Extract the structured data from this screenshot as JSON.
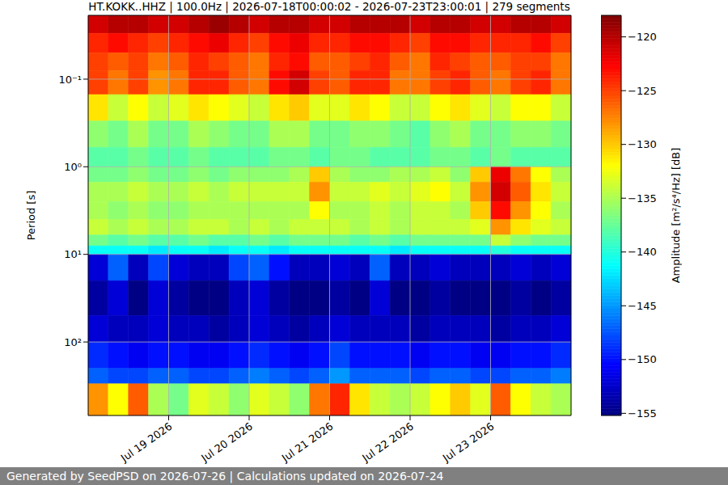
{
  "chart_data": {
    "type": "heatmap",
    "title": "HT.KOKK..HHZ | 100.0Hz | 2026-07-18T00:00:02 - 2026-07-23T23:00:01 | 279 segments",
    "footer": "Generated by SeedPSD on 2026-07-26 | Calculations updated on 2026-07-24",
    "y_label": "Period [s]",
    "log": "y",
    "grid": true,
    "xlim": [
      0,
      144
    ],
    "xticks": [
      {
        "value": 24,
        "label": "Jul 19 2026"
      },
      {
        "value": 48,
        "label": "Jul 20 2026"
      },
      {
        "value": 72,
        "label": "Jul 21 2026"
      },
      {
        "value": 96,
        "label": "Jul 22 2026"
      },
      {
        "value": 120,
        "label": "Jul 23 2026"
      }
    ],
    "ylim": [
      0.0187,
      690
    ],
    "yticks": [
      {
        "value": 0.1,
        "label": "10⁻¹"
      },
      {
        "value": 1,
        "label": "10⁰"
      },
      {
        "value": 10,
        "label": "10¹"
      },
      {
        "value": 100,
        "label": "10²"
      }
    ],
    "x_edges": [
      0,
      6,
      12,
      18,
      24,
      30,
      36,
      42,
      48,
      54,
      60,
      66,
      72,
      78,
      84,
      90,
      96,
      102,
      108,
      114,
      120,
      126,
      132,
      138,
      144
    ],
    "y_edges": [
      0.0187,
      0.03,
      0.05,
      0.08,
      0.15,
      0.3,
      0.6,
      1,
      1.5,
      2.5,
      4,
      6,
      8,
      10,
      20,
      50,
      100,
      200,
      300,
      690
    ],
    "cells": [
      [
        -121,
        -120,
        -120,
        -121,
        -121,
        -120,
        -119,
        -120,
        -121,
        -120,
        -120,
        -121,
        -121,
        -120,
        -120,
        -120,
        -121,
        -120,
        -120,
        -121,
        -121,
        -120,
        -120,
        -121
      ],
      [
        -124,
        -123,
        -124,
        -125,
        -124,
        -123,
        -122,
        -124,
        -125,
        -123,
        -122,
        -124,
        -124,
        -123,
        -123,
        -124,
        -125,
        -123,
        -123,
        -124,
        -124,
        -124,
        -123,
        -125
      ],
      [
        -125,
        -126,
        -125,
        -127,
        -126,
        -124,
        -125,
        -126,
        -127,
        -124,
        -123,
        -126,
        -126,
        -125,
        -124,
        -126,
        -127,
        -124,
        -125,
        -126,
        -126,
        -125,
        -125,
        -127
      ],
      [
        -125,
        -127,
        -125,
        -128,
        -127,
        -124,
        -124,
        -126,
        -127,
        -123,
        -121,
        -125,
        -126,
        -124,
        -124,
        -127,
        -127,
        -125,
        -124,
        -126,
        -127,
        -125,
        -124,
        -127
      ],
      [
        -131,
        -134,
        -132,
        -134,
        -133,
        -131,
        -132,
        -133,
        -134,
        -131,
        -130,
        -133,
        -133,
        -131,
        -132,
        -134,
        -134,
        -132,
        -131,
        -133,
        -134,
        -132,
        -132,
        -134
      ],
      [
        -136,
        -137,
        -135,
        -137,
        -137,
        -135,
        -136,
        -137,
        -137,
        -135,
        -135,
        -137,
        -137,
        -136,
        -136,
        -137,
        -138,
        -136,
        -135,
        -137,
        -137,
        -136,
        -136,
        -137
      ],
      [
        -138,
        -138,
        -137,
        -138,
        -138,
        -137,
        -138,
        -138,
        -138,
        -137,
        -137,
        -138,
        -137,
        -137,
        -138,
        -138,
        -138,
        -137,
        -137,
        -138,
        -137,
        -138,
        -138,
        -138
      ],
      [
        -137,
        -137,
        -136,
        -137,
        -137,
        -136,
        -137,
        -136,
        -136,
        -136,
        -135,
        -130,
        -135,
        -136,
        -136,
        -135,
        -135,
        -134,
        -136,
        -130,
        -122,
        -127,
        -132,
        -135
      ],
      [
        -135,
        -135,
        -134,
        -135,
        -135,
        -134,
        -135,
        -134,
        -134,
        -134,
        -134,
        -128,
        -134,
        -134,
        -133,
        -134,
        -133,
        -132,
        -134,
        -128,
        -121,
        -126,
        -131,
        -134
      ],
      [
        -135,
        -136,
        -135,
        -136,
        -136,
        -135,
        -135,
        -135,
        -135,
        -135,
        -135,
        -132,
        -135,
        -135,
        -134,
        -135,
        -134,
        -134,
        -135,
        -130,
        -123,
        -128,
        -132,
        -135
      ],
      [
        -134,
        -135,
        -134,
        -135,
        -135,
        -134,
        -134,
        -135,
        -134,
        -135,
        -134,
        -134,
        -134,
        -135,
        -134,
        -135,
        -134,
        -134,
        -134,
        -133,
        -128,
        -131,
        -133,
        -134
      ],
      [
        -137,
        -138,
        -137,
        -138,
        -138,
        -137,
        -138,
        -138,
        -137,
        -138,
        -137,
        -137,
        -137,
        -138,
        -137,
        -138,
        -137,
        -137,
        -137,
        -137,
        -134,
        -136,
        -137,
        -137
      ],
      [
        -141,
        -141,
        -141,
        -142,
        -141,
        -141,
        -142,
        -141,
        -141,
        -142,
        -141,
        -141,
        -141,
        -141,
        -141,
        -142,
        -141,
        -141,
        -141,
        -141,
        -140,
        -141,
        -141,
        -141
      ],
      [
        -152,
        -147,
        -153,
        -148,
        -152,
        -153,
        -153,
        -148,
        -147,
        -150,
        -153,
        -153,
        -152,
        -153,
        -147,
        -153,
        -153,
        -152,
        -153,
        -153,
        -153,
        -152,
        -153,
        -152
      ],
      [
        -154,
        -152,
        -155,
        -152,
        -154,
        -155,
        -155,
        -153,
        -152,
        -154,
        -155,
        -155,
        -154,
        -155,
        -152,
        -155,
        -155,
        -154,
        -155,
        -155,
        -155,
        -154,
        -155,
        -154
      ],
      [
        -152,
        -153,
        -153,
        -152,
        -153,
        -153,
        -154,
        -153,
        -152,
        -153,
        -154,
        -153,
        -152,
        -153,
        -153,
        -153,
        -154,
        -153,
        -153,
        -153,
        -154,
        -153,
        -153,
        -152
      ],
      [
        -149,
        -150,
        -151,
        -150,
        -150,
        -151,
        -151,
        -150,
        -149,
        -150,
        -151,
        -150,
        -148,
        -150,
        -150,
        -150,
        -151,
        -150,
        -150,
        -151,
        -151,
        -150,
        -150,
        -149
      ],
      [
        -147,
        -148,
        -148,
        -147,
        -147,
        -148,
        -148,
        -147,
        -146,
        -147,
        -148,
        -147,
        -145,
        -147,
        -147,
        -147,
        -148,
        -147,
        -147,
        -148,
        -148,
        -147,
        -147,
        -146
      ],
      [
        -128,
        -132,
        -126,
        -135,
        -137,
        -133,
        -134,
        -136,
        -133,
        -134,
        -136,
        -127,
        -124,
        -131,
        -134,
        -135,
        -134,
        -132,
        -130,
        -133,
        -126,
        -132,
        -134,
        -135
      ]
    ],
    "colorbar": {
      "label": "Amplitude [m²/s⁴/Hz] [dB]",
      "range": [
        -155.2,
        -118
      ],
      "ticks": [
        {
          "value": -120,
          "label": "−120"
        },
        {
          "value": -125,
          "label": "−125"
        },
        {
          "value": -130,
          "label": "−130"
        },
        {
          "value": -135,
          "label": "−135"
        },
        {
          "value": -140,
          "label": "−140"
        },
        {
          "value": -145,
          "label": "−145"
        },
        {
          "value": -150,
          "label": "−150"
        },
        {
          "value": -155,
          "label": "−155"
        }
      ]
    }
  }
}
